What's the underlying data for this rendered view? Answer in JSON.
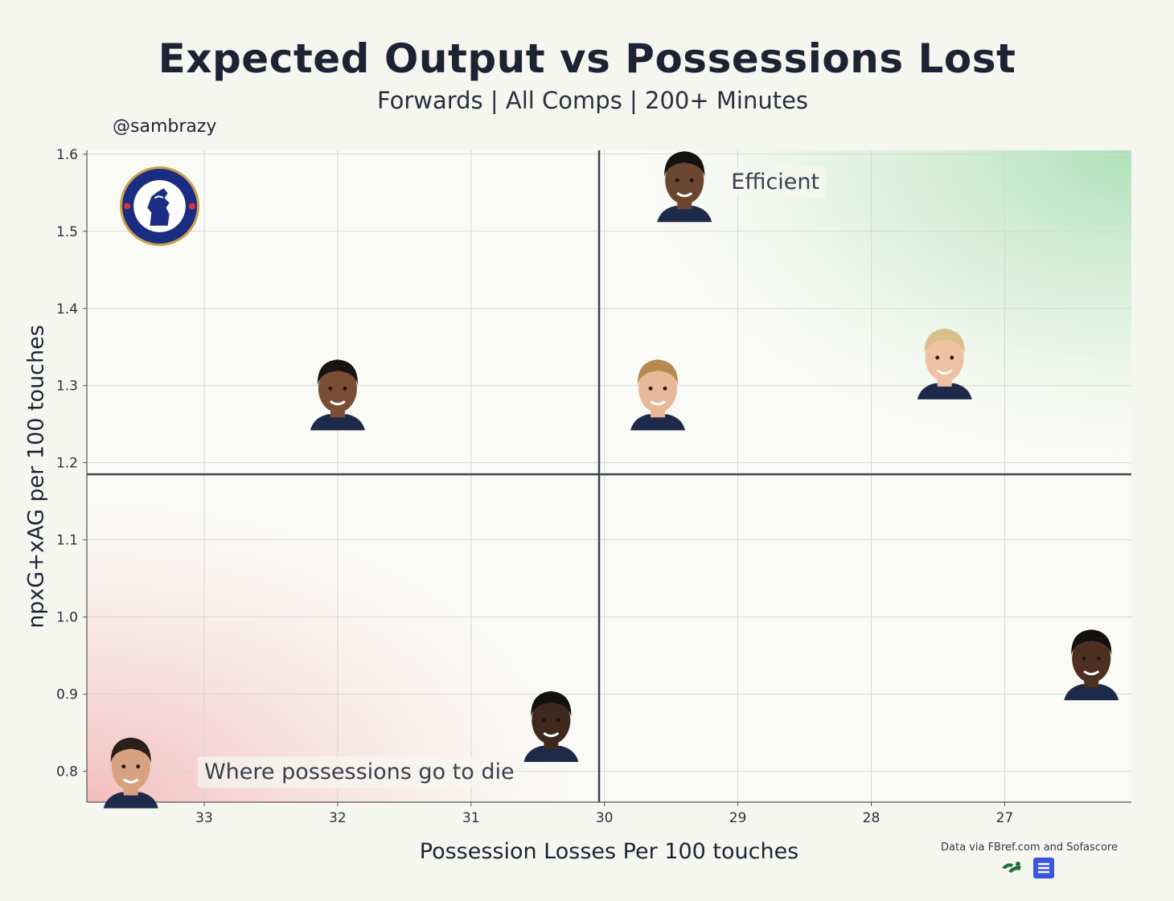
{
  "handle": "@sambrazy",
  "source": "Data via FBref.com and Sofascore",
  "colors": {
    "background": "#f6f6f1",
    "plot_bg": "#fafaf6",
    "quadrant_line": "#3a4150",
    "grid": "#d7d7d2",
    "good_zone": "#b9e6c1",
    "bad_zone": "#f4c4c4"
  },
  "chart_data": {
    "type": "scatter",
    "title": "Expected Output vs Possessions Lost",
    "subtitle": "Forwards | All Comps | 200+ Minutes",
    "xlabel": "Possession Losses Per 100 touches",
    "ylabel": "npxG+xAG per 100 touches",
    "x_inverted": true,
    "xlim": [
      33.88,
      26.05
    ],
    "ylim": [
      0.76,
      1.605
    ],
    "xticks": [
      33,
      32,
      31,
      30,
      29,
      28,
      27
    ],
    "yticks": [
      0.8,
      0.9,
      1.0,
      1.1,
      1.2,
      1.3,
      1.4,
      1.5,
      1.6
    ],
    "grid": true,
    "reference_lines": {
      "x": 30.04,
      "y": 1.185
    },
    "annotations": [
      {
        "text": "Efficient",
        "quadrant": "top-right"
      },
      {
        "text": "Where possessions go to die",
        "quadrant": "bottom-left"
      }
    ],
    "points": [
      {
        "x": 29.4,
        "y": 1.56,
        "marker": "player-headshot",
        "skin": "#6b4630",
        "hair": "#15110e"
      },
      {
        "x": 32.0,
        "y": 1.29,
        "marker": "player-headshot",
        "skin": "#7a4e35",
        "hair": "#1a1411"
      },
      {
        "x": 29.6,
        "y": 1.29,
        "marker": "player-headshot",
        "skin": "#e9b898",
        "hair": "#b78a52"
      },
      {
        "x": 27.45,
        "y": 1.33,
        "marker": "player-headshot",
        "skin": "#eec1a3",
        "hair": "#d9c08a"
      },
      {
        "x": 26.35,
        "y": 0.94,
        "marker": "player-headshot",
        "skin": "#4d3021",
        "hair": "#141010"
      },
      {
        "x": 30.4,
        "y": 0.86,
        "marker": "player-headshot",
        "skin": "#3f281c",
        "hair": "#121010"
      },
      {
        "x": 33.55,
        "y": 0.8,
        "marker": "player-headshot",
        "skin": "#d7a27f",
        "hair": "#2a1f19"
      }
    ]
  }
}
